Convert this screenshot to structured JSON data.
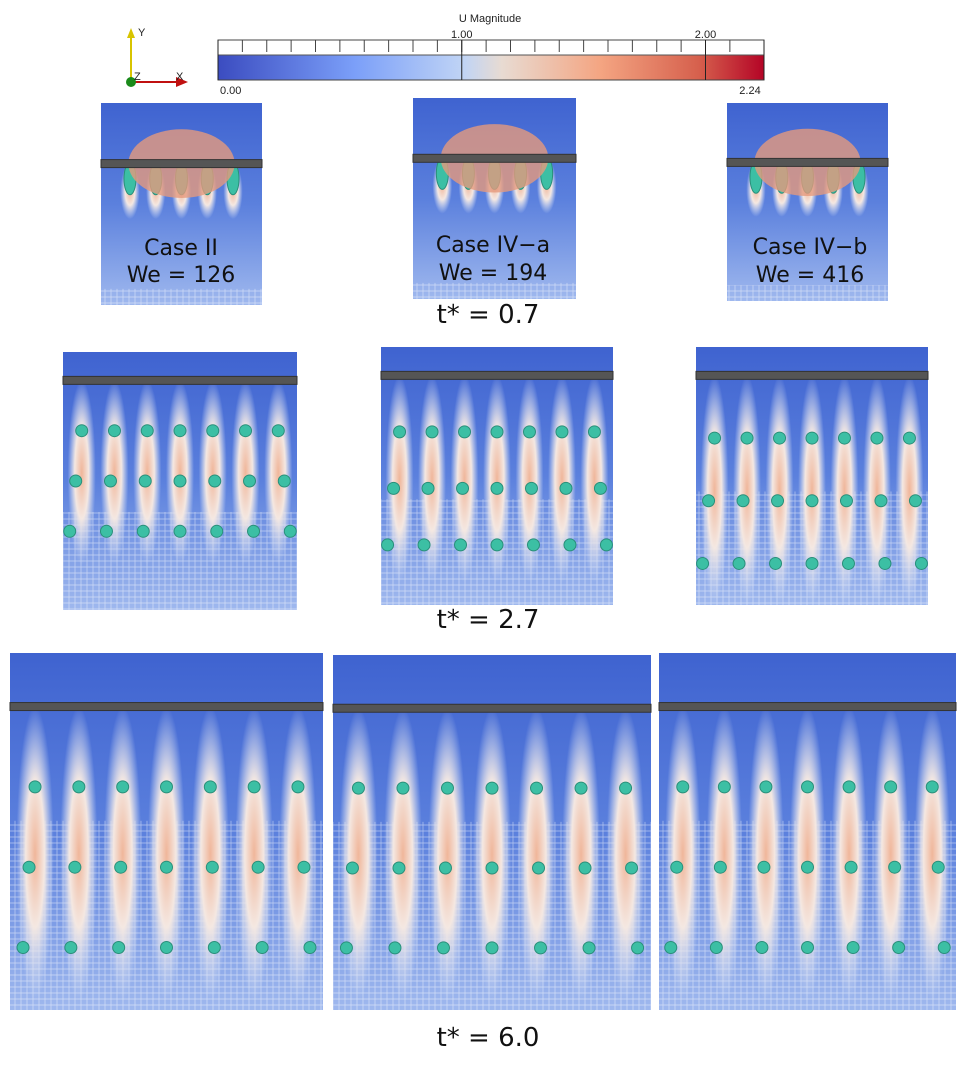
{
  "colorbar": {
    "title": "U Magnitude",
    "range": [
      {
        "value": 0,
        "label": "0.00"
      },
      {
        "value": 2.24,
        "label": "2.24"
      }
    ],
    "ticks": [
      {
        "value": 1,
        "label": "1.00"
      },
      {
        "value": 2,
        "label": "2.00"
      }
    ]
  },
  "axes_triad": {
    "y": "Y",
    "z": "Z",
    "x": "X"
  },
  "rows": [
    {
      "panels": [
        {
          "case": "Case II",
          "we": "We = 126"
        },
        {
          "case": "Case IV−a",
          "we": "We = 194"
        },
        {
          "case": "Case IV−b",
          "we": "We = 416"
        }
      ],
      "time": "t* = 0.7"
    },
    {
      "time": "t* = 2.7"
    },
    {
      "time": "t* = 6.0"
    }
  ]
}
